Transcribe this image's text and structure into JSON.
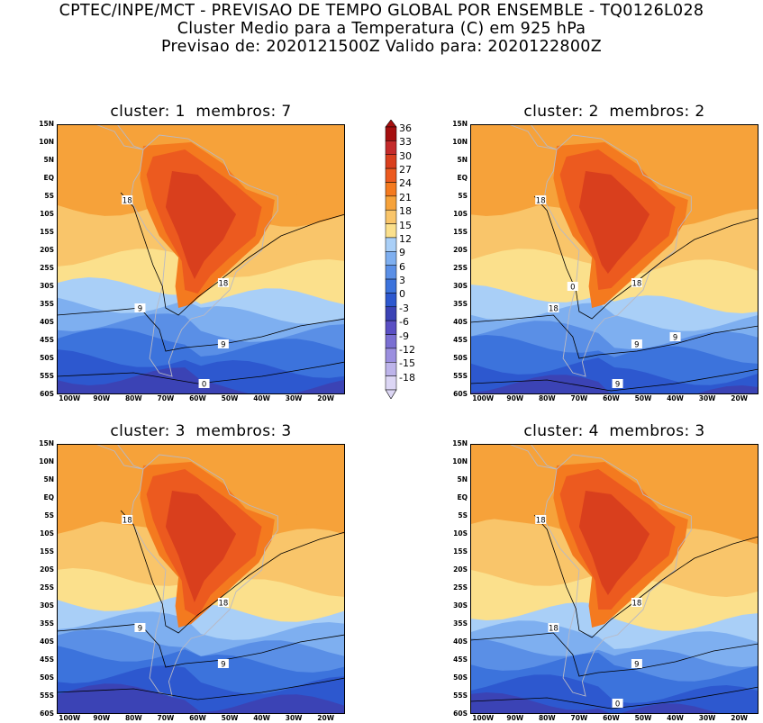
{
  "header": {
    "line1": "CPTEC/INPE/MCT - PREVISAO DE TEMPO GLOBAL POR ENSEMBLE - TQ0126L028",
    "line2": "Cluster Medio para a Temperatura (C) em 925 hPa",
    "line3": "Previsao de: 2020121500Z   Valido para: 2020122800Z"
  },
  "lat_labels": [
    "15N",
    "10N",
    "5N",
    "EQ",
    "5S",
    "10S",
    "15S",
    "20S",
    "25S",
    "30S",
    "35S",
    "40S",
    "45S",
    "50S",
    "55S",
    "60S"
  ],
  "lon_labels": [
    "100W",
    "90W",
    "80W",
    "70W",
    "60W",
    "50W",
    "40W",
    "30W",
    "20W"
  ],
  "legend": {
    "levels": [
      "36",
      "33",
      "30",
      "27",
      "24",
      "21",
      "18",
      "15",
      "12",
      "9",
      "6",
      "3",
      "0",
      "-3",
      "-6",
      "-9",
      "-12",
      "-15",
      "-18"
    ],
    "colors": [
      "#a50f0f",
      "#c42a2a",
      "#d93f1d",
      "#ec5a1f",
      "#f47a1f",
      "#f6a23a",
      "#f9c56a",
      "#fbe08c",
      "#a9cff7",
      "#7eaff0",
      "#5a8fe6",
      "#3c73dc",
      "#2d58cf",
      "#3b43b5",
      "#5a4fc4",
      "#7a6fd2",
      "#9b8fdf",
      "#bdb4ea",
      "#dcd6f4"
    ]
  },
  "panels": [
    {
      "title": "cluster: 1  membros: 7",
      "contour_labels": [
        "18",
        "18",
        "9",
        "9",
        "0"
      ]
    },
    {
      "title": "cluster: 2  membros: 2",
      "contour_labels": [
        "18",
        "18",
        "18",
        "9",
        "9",
        "9",
        "0"
      ]
    },
    {
      "title": "cluster: 3  membros: 3",
      "contour_labels": [
        "18",
        "18",
        "9",
        "9"
      ]
    },
    {
      "title": "cluster: 4  membros: 3",
      "contour_labels": [
        "18",
        "18",
        "18",
        "9",
        "0"
      ]
    }
  ]
}
